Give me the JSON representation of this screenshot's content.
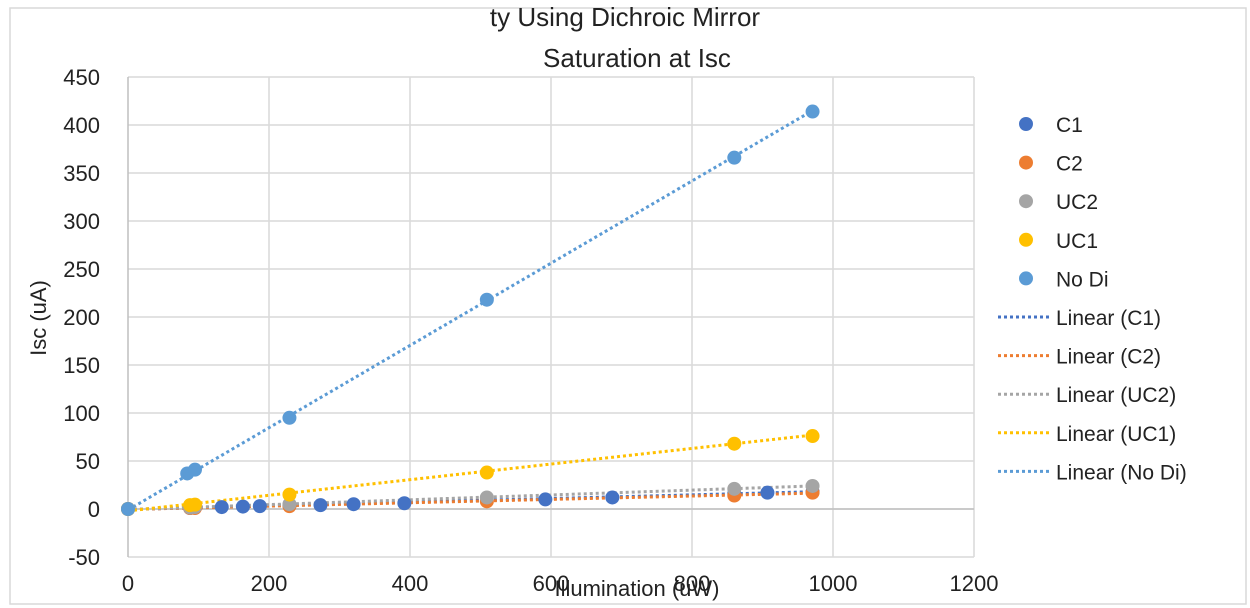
{
  "header_fragment": "ty Using Dichroic Mirror",
  "chart_data": {
    "type": "scatter",
    "title": "Saturation at Isc",
    "xlabel": "Illumination (uW)",
    "ylabel": "Isc (uA)",
    "xlim": [
      0,
      1200
    ],
    "ylim": [
      -50,
      450
    ],
    "xticks": [
      "0",
      "200",
      "400",
      "600",
      "800",
      "1000",
      "1200"
    ],
    "yticks": [
      "-50",
      "0",
      "50",
      "100",
      "150",
      "200",
      "250",
      "300",
      "350",
      "400",
      "450"
    ],
    "grid": true,
    "legend_position": "right",
    "series": [
      {
        "name": "C1",
        "color": "#4472C4",
        "points": [
          [
            0,
            0
          ],
          [
            88,
            1
          ],
          [
            95,
            1.5
          ],
          [
            133,
            2
          ],
          [
            163,
            2.5
          ],
          [
            187,
            3
          ],
          [
            229,
            3.5
          ],
          [
            273,
            4
          ],
          [
            320,
            5
          ],
          [
            392,
            6
          ],
          [
            592,
            10
          ],
          [
            687,
            12
          ],
          [
            860,
            16
          ],
          [
            907,
            17
          ],
          [
            971,
            18
          ]
        ]
      },
      {
        "name": "C2",
        "color": "#ED7D31",
        "points": [
          [
            0,
            0
          ],
          [
            88,
            1
          ],
          [
            95,
            1
          ],
          [
            229,
            3
          ],
          [
            509,
            8
          ],
          [
            860,
            14
          ],
          [
            971,
            17
          ]
        ]
      },
      {
        "name": "UC2",
        "color": "#A5A5A5",
        "points": [
          [
            0,
            0
          ],
          [
            88,
            1.5
          ],
          [
            95,
            2
          ],
          [
            229,
            5
          ],
          [
            509,
            12
          ],
          [
            860,
            21
          ],
          [
            971,
            24
          ]
        ]
      },
      {
        "name": "UC1",
        "color": "#FFC000",
        "points": [
          [
            0,
            0
          ],
          [
            88,
            4
          ],
          [
            95,
            4.5
          ],
          [
            229,
            15
          ],
          [
            509,
            38
          ],
          [
            860,
            68
          ],
          [
            971,
            76
          ]
        ]
      },
      {
        "name": "No Di",
        "color": "#5B9BD5",
        "points": [
          [
            0,
            0
          ],
          [
            84,
            37
          ],
          [
            95,
            41
          ],
          [
            229,
            95
          ],
          [
            509,
            218
          ],
          [
            860,
            366
          ],
          [
            971,
            414
          ]
        ]
      }
    ],
    "trendlines": [
      {
        "name": "Linear (C1)",
        "color": "#4472C4",
        "x": [
          0,
          971
        ],
        "y": [
          -0.5,
          18
        ]
      },
      {
        "name": "Linear (C2)",
        "color": "#ED7D31",
        "x": [
          0,
          971
        ],
        "y": [
          -0.5,
          16.5
        ]
      },
      {
        "name": "Linear (UC2)",
        "color": "#A5A5A5",
        "x": [
          0,
          971
        ],
        "y": [
          -0.5,
          24
        ]
      },
      {
        "name": "Linear (UC1)",
        "color": "#FFC000",
        "x": [
          0,
          971
        ],
        "y": [
          -2,
          77
        ]
      },
      {
        "name": "Linear (No Di)",
        "color": "#5B9BD5",
        "x": [
          0,
          971
        ],
        "y": [
          -1,
          415
        ]
      }
    ]
  }
}
